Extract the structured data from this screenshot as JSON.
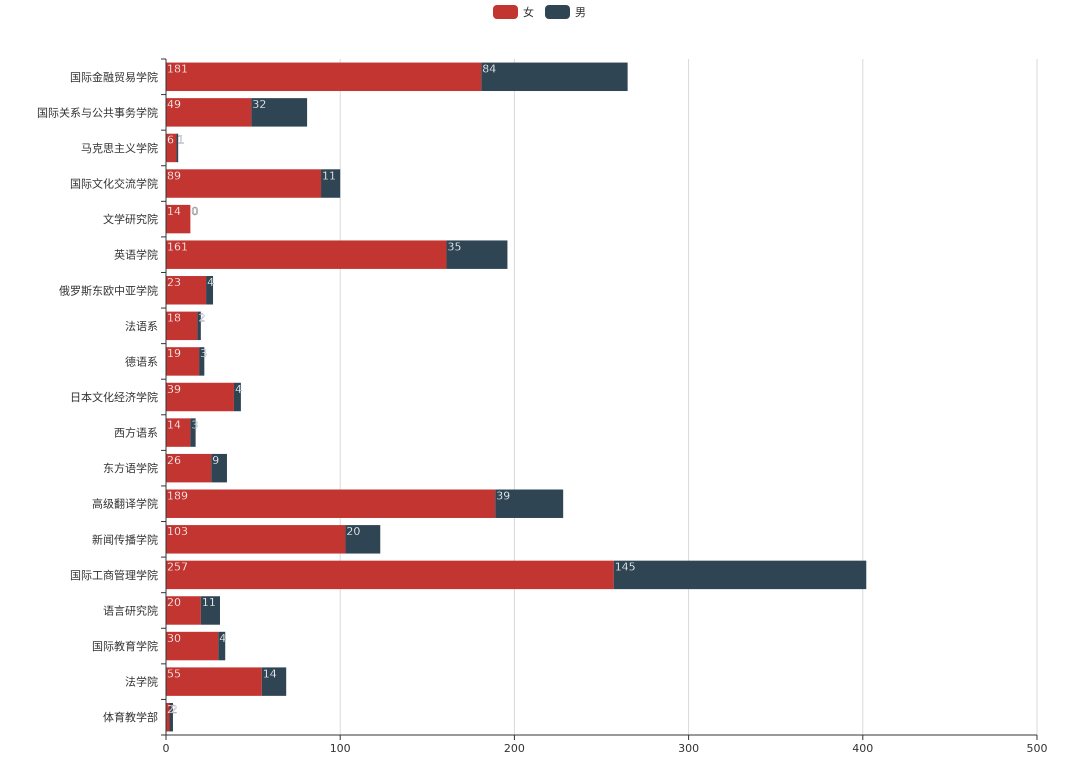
{
  "colors": {
    "female": "#c23531",
    "male": "#2f4554",
    "grid": "#d9d9d9",
    "axis": "#333333",
    "text": "#333333",
    "bar_label": "#ffffff"
  },
  "chart_data": {
    "type": "bar",
    "orientation": "horizontal",
    "stacked": true,
    "legend": {
      "position": "top-center",
      "items": [
        {
          "name": "女",
          "color": "#c23531"
        },
        {
          "name": "男",
          "color": "#2f4554"
        }
      ]
    },
    "categories": [
      "国际金融贸易学院",
      "国际关系与公共事务学院",
      "马克思主义学院",
      "国际文化交流学院",
      "文学研究院",
      "英语学院",
      "俄罗斯东欧中亚学院",
      "法语系",
      "德语系",
      "日本文化经济学院",
      "西方语系",
      "东方语学院",
      "高级翻译学院",
      "新闻传播学院",
      "国际工商管理学院",
      "语言研究院",
      "国际教育学院",
      "法学院",
      "体育教学部"
    ],
    "series": [
      {
        "name": "女",
        "values": [
          181,
          49,
          6,
          89,
          14,
          161,
          23,
          18,
          19,
          39,
          14,
          26,
          189,
          103,
          257,
          20,
          30,
          55,
          2
        ]
      },
      {
        "name": "男",
        "values": [
          84,
          32,
          1,
          11,
          0,
          35,
          4,
          2,
          3,
          4,
          3,
          9,
          39,
          20,
          145,
          11,
          4,
          14,
          2
        ]
      }
    ],
    "xlim": [
      0,
      500
    ],
    "x_ticks": [
      0,
      100,
      200,
      300,
      400,
      500
    ],
    "grid": true,
    "xlabel": "",
    "ylabel": "",
    "title": ""
  }
}
